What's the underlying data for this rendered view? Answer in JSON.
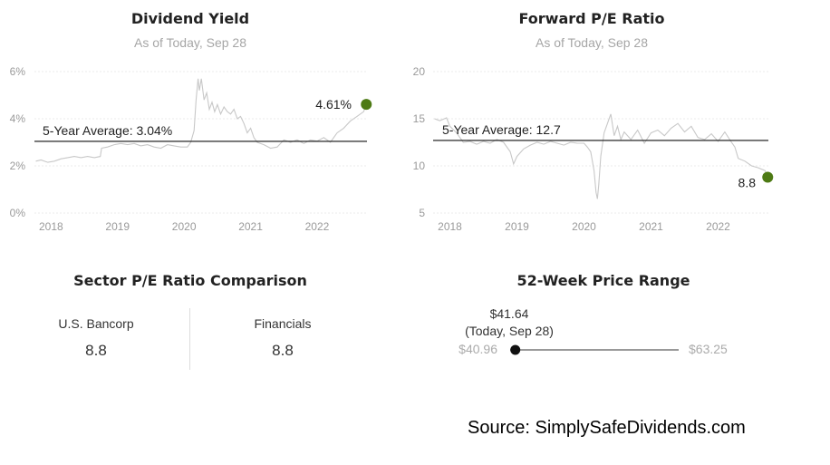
{
  "chart_data": [
    {
      "type": "line",
      "title": "Dividend Yield",
      "subtitle": "As of Today, Sep 28",
      "y_ticks": [
        "6%",
        "4%",
        "2%",
        "0%"
      ],
      "y_tick_values": [
        6,
        4,
        2,
        0
      ],
      "ylim": [
        0,
        6
      ],
      "x_ticks": [
        "2018",
        "2019",
        "2020",
        "2021",
        "2022"
      ],
      "x_tick_values": [
        2018,
        2019,
        2020,
        2021,
        2022
      ],
      "xlim": [
        2017.75,
        2022.75
      ],
      "grid": true,
      "average": {
        "label": "5-Year Average: 3.04%",
        "value": 3.04
      },
      "current": {
        "label": "4.61%",
        "value": 4.61,
        "x": 2022.74
      },
      "series_color": "#c8c8c8",
      "current_color": "#4d7a14",
      "series": [
        {
          "x": [
            2017.77,
            2017.85,
            2017.95,
            2018.05,
            2018.15,
            2018.25,
            2018.35,
            2018.45,
            2018.55,
            2018.65,
            2018.74,
            2018.76,
            2018.85,
            2018.95,
            2019.05,
            2019.15,
            2019.25,
            2019.35,
            2019.45,
            2019.55,
            2019.65,
            2019.75,
            2019.85,
            2019.95,
            2020.05,
            2020.1,
            2020.15,
            2020.18,
            2020.21,
            2020.23,
            2020.26,
            2020.3,
            2020.34,
            2020.38,
            2020.42,
            2020.46,
            2020.5,
            2020.55,
            2020.6,
            2020.65,
            2020.7,
            2020.75,
            2020.8,
            2020.85,
            2020.9,
            2020.95,
            2021.0,
            2021.05,
            2021.1,
            2021.2,
            2021.3,
            2021.4,
            2021.5,
            2021.6,
            2021.7,
            2021.8,
            2021.9,
            2022.0,
            2022.1,
            2022.2,
            2022.3,
            2022.4,
            2022.5,
            2022.6,
            2022.7,
            2022.74
          ],
          "values": [
            2.2,
            2.25,
            2.15,
            2.2,
            2.3,
            2.35,
            2.4,
            2.35,
            2.4,
            2.35,
            2.4,
            2.75,
            2.8,
            2.9,
            2.95,
            2.9,
            2.95,
            2.85,
            2.9,
            2.8,
            2.75,
            2.9,
            2.85,
            2.8,
            2.8,
            3.0,
            3.5,
            4.8,
            5.7,
            5.2,
            5.7,
            4.8,
            5.1,
            4.4,
            4.7,
            4.3,
            4.6,
            4.2,
            4.5,
            4.3,
            4.2,
            4.4,
            4.0,
            4.1,
            3.8,
            3.4,
            3.6,
            3.2,
            3.0,
            2.9,
            2.75,
            2.8,
            3.1,
            3.0,
            3.1,
            2.95,
            3.1,
            3.05,
            3.2,
            3.0,
            3.4,
            3.6,
            3.9,
            4.1,
            4.3,
            4.61
          ]
        }
      ]
    },
    {
      "type": "line",
      "title": "Forward P/E Ratio",
      "subtitle": "As of Today, Sep 28",
      "y_ticks": [
        "20",
        "15",
        "10",
        "5"
      ],
      "y_tick_values": [
        20,
        15,
        10,
        5
      ],
      "ylim": [
        5,
        20
      ],
      "x_ticks": [
        "2018",
        "2019",
        "2020",
        "2021",
        "2022"
      ],
      "x_tick_values": [
        2018,
        2019,
        2020,
        2021,
        2022
      ],
      "xlim": [
        2017.75,
        2022.75
      ],
      "grid": true,
      "average": {
        "label": "5-Year Average: 12.7",
        "value": 12.7
      },
      "current": {
        "label": "8.8",
        "value": 8.8,
        "x": 2022.74
      },
      "series_color": "#c8c8c8",
      "current_color": "#4d7a14",
      "series": [
        {
          "x": [
            2017.77,
            2017.85,
            2017.95,
            2018.0,
            2018.1,
            2018.2,
            2018.3,
            2018.4,
            2018.5,
            2018.6,
            2018.7,
            2018.8,
            2018.9,
            2018.95,
            2019.0,
            2019.1,
            2019.2,
            2019.3,
            2019.4,
            2019.5,
            2019.6,
            2019.7,
            2019.8,
            2019.9,
            2020.0,
            2020.05,
            2020.1,
            2020.15,
            2020.18,
            2020.2,
            2020.22,
            2020.25,
            2020.3,
            2020.35,
            2020.4,
            2020.45,
            2020.5,
            2020.55,
            2020.6,
            2020.7,
            2020.8,
            2020.9,
            2021.0,
            2021.1,
            2021.2,
            2021.3,
            2021.4,
            2021.5,
            2021.6,
            2021.7,
            2021.8,
            2021.9,
            2022.0,
            2022.1,
            2022.2,
            2022.25,
            2022.3,
            2022.4,
            2022.5,
            2022.6,
            2022.7,
            2022.74
          ],
          "values": [
            15.0,
            14.8,
            15.1,
            14.2,
            13.5,
            12.5,
            12.6,
            12.3,
            12.6,
            12.4,
            12.8,
            12.5,
            11.5,
            10.2,
            11.0,
            11.8,
            12.2,
            12.5,
            12.3,
            12.6,
            12.4,
            12.2,
            12.5,
            12.4,
            12.4,
            12.0,
            11.5,
            9.5,
            7.2,
            6.5,
            8.0,
            11.0,
            13.5,
            14.5,
            15.5,
            13.2,
            14.2,
            12.8,
            13.6,
            12.8,
            13.8,
            12.4,
            13.5,
            13.8,
            13.2,
            14.0,
            14.5,
            13.6,
            14.2,
            13.0,
            12.8,
            13.4,
            12.6,
            13.6,
            12.5,
            12.0,
            10.8,
            10.5,
            10.0,
            9.8,
            9.5,
            8.8
          ]
        }
      ]
    }
  ],
  "sector": {
    "title": "Sector P/E Ratio Comparison",
    "company_name": "U.S. Bancorp",
    "company_value": "8.8",
    "sector_name": "Financials",
    "sector_value": "8.8"
  },
  "price_range": {
    "title": "52-Week Price Range",
    "current_price": "$41.64",
    "current_note": "(Today, Sep 28)",
    "low": "$40.96",
    "high": "$63.25",
    "low_value": 40.96,
    "high_value": 63.25,
    "current_value": 41.64
  },
  "source": "Source: SimplySafeDividends.com"
}
